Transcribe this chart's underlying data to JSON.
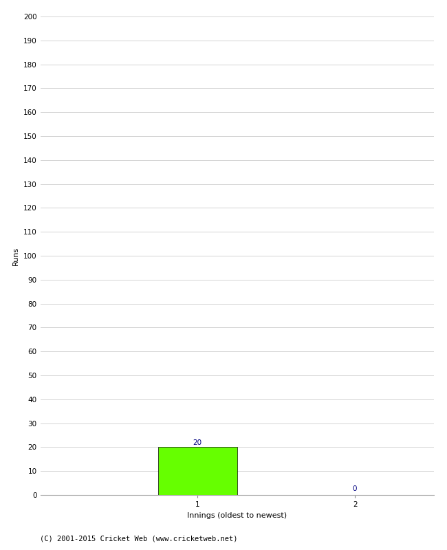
{
  "categories": [
    1,
    2
  ],
  "values": [
    20,
    0
  ],
  "bar_color": "#66ff00",
  "bar_edge_color": "#000000",
  "title": "",
  "xlabel": "Innings (oldest to newest)",
  "ylabel": "Runs",
  "ylim": [
    0,
    200
  ],
  "ytick_step": 10,
  "bar_width": 0.5,
  "value_labels": [
    "20",
    "0"
  ],
  "footer": "(C) 2001-2015 Cricket Web (www.cricketweb.net)",
  "background_color": "#ffffff",
  "grid_color": "#cccccc",
  "value_label_fontsize": 7.5,
  "axis_label_fontsize": 8,
  "tick_fontsize": 7.5,
  "footer_fontsize": 7.5,
  "xlim": [
    0,
    2.5
  ]
}
